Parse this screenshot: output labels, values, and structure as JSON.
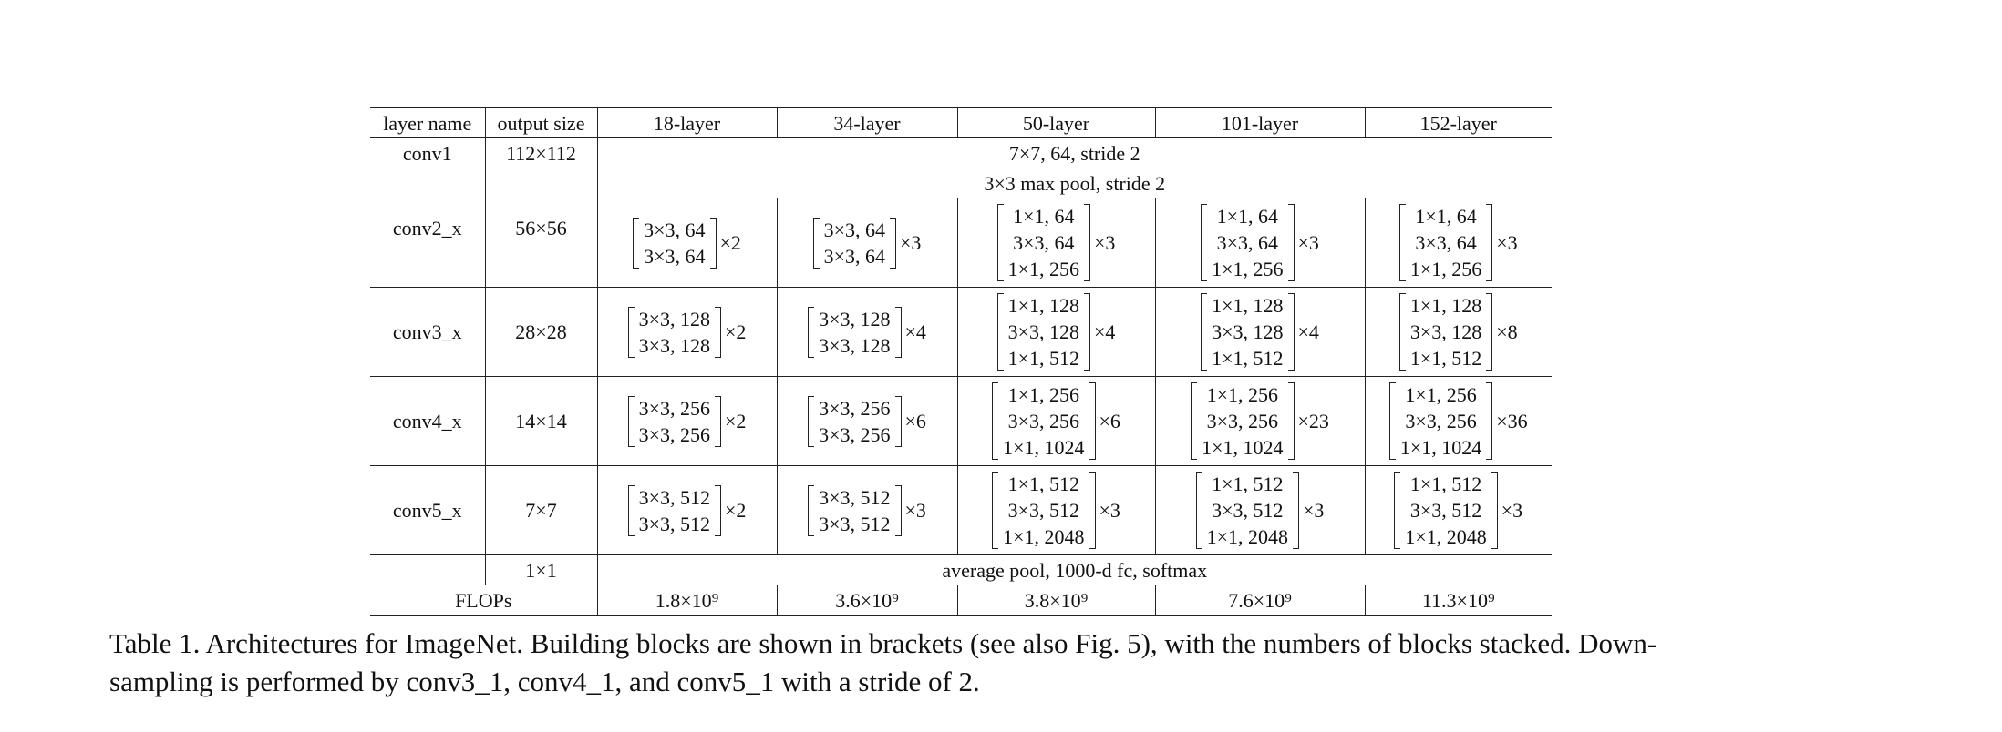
{
  "table": {
    "headers": [
      "layer name",
      "output size",
      "18-layer",
      "34-layer",
      "50-layer",
      "101-layer",
      "152-layer"
    ],
    "conv1": {
      "name": "conv1",
      "size": "112×112",
      "spec": "7×7, 64, stride 2"
    },
    "maxpool": "3×3 max pool, stride 2",
    "stages": [
      {
        "name": "conv2_x",
        "size": "56×56",
        "blocks": [
          {
            "lines": [
              "3×3, 64",
              "3×3, 64"
            ],
            "mult": "×2"
          },
          {
            "lines": [
              "3×3, 64",
              "3×3, 64"
            ],
            "mult": "×3"
          },
          {
            "lines": [
              "1×1, 64",
              "3×3, 64",
              "1×1, 256"
            ],
            "mult": "×3"
          },
          {
            "lines": [
              "1×1, 64",
              "3×3, 64",
              "1×1, 256"
            ],
            "mult": "×3"
          },
          {
            "lines": [
              "1×1, 64",
              "3×3, 64",
              "1×1, 256"
            ],
            "mult": "×3"
          }
        ]
      },
      {
        "name": "conv3_x",
        "size": "28×28",
        "blocks": [
          {
            "lines": [
              "3×3, 128",
              "3×3, 128"
            ],
            "mult": "×2"
          },
          {
            "lines": [
              "3×3, 128",
              "3×3, 128"
            ],
            "mult": "×4"
          },
          {
            "lines": [
              "1×1, 128",
              "3×3, 128",
              "1×1, 512"
            ],
            "mult": "×4"
          },
          {
            "lines": [
              "1×1, 128",
              "3×3, 128",
              "1×1, 512"
            ],
            "mult": "×4"
          },
          {
            "lines": [
              "1×1, 128",
              "3×3, 128",
              "1×1, 512"
            ],
            "mult": "×8"
          }
        ]
      },
      {
        "name": "conv4_x",
        "size": "14×14",
        "blocks": [
          {
            "lines": [
              "3×3, 256",
              "3×3, 256"
            ],
            "mult": "×2"
          },
          {
            "lines": [
              "3×3, 256",
              "3×3, 256"
            ],
            "mult": "×6"
          },
          {
            "lines": [
              "1×1, 256",
              "3×3, 256",
              "1×1, 1024"
            ],
            "mult": "×6"
          },
          {
            "lines": [
              "1×1, 256",
              "3×3, 256",
              "1×1, 1024"
            ],
            "mult": "×23"
          },
          {
            "lines": [
              "1×1, 256",
              "3×3, 256",
              "1×1, 1024"
            ],
            "mult": "×36"
          }
        ]
      },
      {
        "name": "conv5_x",
        "size": "7×7",
        "blocks": [
          {
            "lines": [
              "3×3, 512",
              "3×3, 512"
            ],
            "mult": "×2"
          },
          {
            "lines": [
              "3×3, 512",
              "3×3, 512"
            ],
            "mult": "×3"
          },
          {
            "lines": [
              "1×1, 512",
              "3×3, 512",
              "1×1, 2048"
            ],
            "mult": "×3"
          },
          {
            "lines": [
              "1×1, 512",
              "3×3, 512",
              "1×1, 2048"
            ],
            "mult": "×3"
          },
          {
            "lines": [
              "1×1, 512",
              "3×3, 512",
              "1×1, 2048"
            ],
            "mult": "×3"
          }
        ]
      }
    ],
    "pool": {
      "size": "1×1",
      "spec": "average pool, 1000-d fc, softmax"
    },
    "flops": {
      "label": "FLOPs",
      "values": [
        "1.8×10⁹",
        "3.6×10⁹",
        "3.8×10⁹",
        "7.6×10⁹",
        "11.3×10⁹"
      ]
    }
  },
  "caption": {
    "line1": "Table 1. Architectures for ImageNet. Building blocks are shown in brackets (see also Fig. 5), with the numbers of blocks stacked. Down-",
    "line2": "sampling is performed by conv3_1, conv4_1, and conv5_1 with a stride of 2."
  }
}
